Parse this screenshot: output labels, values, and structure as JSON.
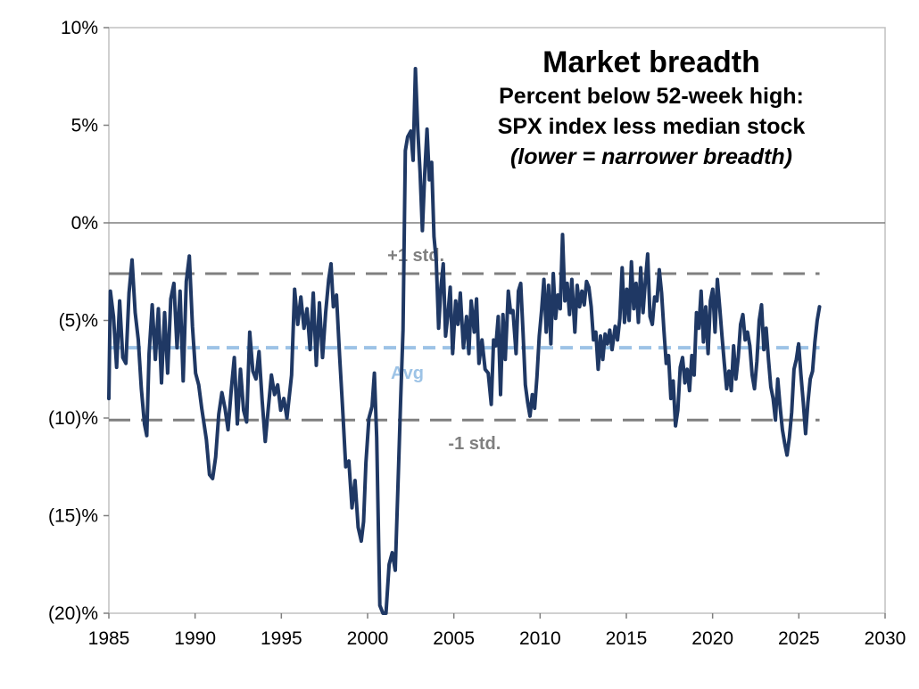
{
  "chart_data": {
    "type": "line",
    "title": "Market breadth",
    "subtitle_lines": [
      "Percent below 52-week high:",
      "SPX index less median stock"
    ],
    "note": "(lower = narrower breadth)",
    "xlim": [
      1985,
      2030
    ],
    "ylim": [
      -20,
      10
    ],
    "x_ticks": [
      {
        "value": 1985,
        "label": "1985"
      },
      {
        "value": 1990,
        "label": "1990"
      },
      {
        "value": 1995,
        "label": "1995"
      },
      {
        "value": 2000,
        "label": "2000"
      },
      {
        "value": 2005,
        "label": "2005"
      },
      {
        "value": 2010,
        "label": "2010"
      },
      {
        "value": 2015,
        "label": "2015"
      },
      {
        "value": 2020,
        "label": "2020"
      },
      {
        "value": 2025,
        "label": "2025"
      },
      {
        "value": 2030,
        "label": "2030"
      }
    ],
    "y_ticks": [
      {
        "value": 10,
        "label": "10%"
      },
      {
        "value": 5,
        "label": "5%"
      },
      {
        "value": 0,
        "label": "0%"
      },
      {
        "value": -5,
        "label": "(5)%"
      },
      {
        "value": -10,
        "label": "(10)%"
      },
      {
        "value": -15,
        "label": "(15)%"
      },
      {
        "value": -20,
        "label": "(20)%"
      }
    ],
    "reference_lines": [
      {
        "label": "+1 std.",
        "value": -2.6,
        "color": "#7f7f7f",
        "label_x": 2002.8
      },
      {
        "label": "Avg",
        "value": -6.4,
        "color": "#9dc3e6",
        "label_x": 2002.3
      },
      {
        "label": "-1 std.",
        "value": -10.1,
        "color": "#7f7f7f",
        "label_x": 2006.2
      }
    ],
    "series": [
      {
        "color": "#1f3864",
        "points": [
          [
            1985.0,
            -9.0
          ],
          [
            1985.1,
            -3.5
          ],
          [
            1985.3,
            -4.8
          ],
          [
            1985.5,
            -7.4
          ],
          [
            1985.7,
            -4.0
          ],
          [
            1985.9,
            -6.9
          ],
          [
            1986.1,
            -7.2
          ],
          [
            1986.3,
            -3.6
          ],
          [
            1986.5,
            -1.9
          ],
          [
            1986.7,
            -4.6
          ],
          [
            1986.9,
            -6.0
          ],
          [
            1987.1,
            -8.5
          ],
          [
            1987.3,
            -10.3
          ],
          [
            1987.45,
            -10.9
          ],
          [
            1987.6,
            -6.7
          ],
          [
            1987.8,
            -4.2
          ],
          [
            1988.0,
            -7.0
          ],
          [
            1988.2,
            -4.4
          ],
          [
            1988.4,
            -8.2
          ],
          [
            1988.6,
            -4.6
          ],
          [
            1988.8,
            -7.7
          ],
          [
            1989.0,
            -3.9
          ],
          [
            1989.2,
            -3.1
          ],
          [
            1989.4,
            -6.4
          ],
          [
            1989.6,
            -3.5
          ],
          [
            1989.8,
            -8.1
          ],
          [
            1990.0,
            -3.0
          ],
          [
            1990.2,
            -1.7
          ],
          [
            1990.4,
            -5.3
          ],
          [
            1990.6,
            -7.7
          ],
          [
            1990.8,
            -8.3
          ],
          [
            1991.0,
            -9.5
          ],
          [
            1991.3,
            -11.1
          ],
          [
            1991.5,
            -12.9
          ],
          [
            1991.7,
            -13.1
          ],
          [
            1991.9,
            -12.0
          ],
          [
            1992.1,
            -9.8
          ],
          [
            1992.3,
            -8.7
          ],
          [
            1992.5,
            -9.5
          ],
          [
            1992.7,
            -10.6
          ],
          [
            1992.9,
            -8.6
          ],
          [
            1993.1,
            -6.9
          ],
          [
            1993.3,
            -10.3
          ],
          [
            1993.5,
            -7.5
          ],
          [
            1993.7,
            -9.6
          ],
          [
            1993.9,
            -10.2
          ],
          [
            1994.1,
            -5.6
          ],
          [
            1994.3,
            -7.6
          ],
          [
            1994.5,
            -8.0
          ],
          [
            1994.7,
            -6.6
          ],
          [
            1994.9,
            -9.1
          ],
          [
            1995.1,
            -11.2
          ],
          [
            1995.3,
            -9.5
          ],
          [
            1995.5,
            -7.8
          ],
          [
            1995.7,
            -8.8
          ],
          [
            1995.9,
            -8.3
          ],
          [
            1996.1,
            -9.6
          ],
          [
            1996.3,
            -9.0
          ],
          [
            1996.5,
            -10.0
          ],
          [
            1996.8,
            -7.8
          ],
          [
            1997.0,
            -3.4
          ],
          [
            1997.2,
            -5.2
          ],
          [
            1997.4,
            -3.8
          ],
          [
            1997.6,
            -5.4
          ],
          [
            1997.8,
            -4.4
          ],
          [
            1998.0,
            -6.5
          ],
          [
            1998.2,
            -3.6
          ],
          [
            1998.4,
            -7.3
          ],
          [
            1998.6,
            -4.1
          ],
          [
            1998.8,
            -6.9
          ],
          [
            1999.0,
            -4.6
          ],
          [
            1999.2,
            -2.9
          ],
          [
            1999.35,
            -2.1
          ],
          [
            1999.5,
            -4.3
          ],
          [
            1999.7,
            -3.7
          ],
          [
            1999.9,
            -6.8
          ],
          [
            2000.1,
            -9.5
          ],
          [
            2000.3,
            -12.5
          ],
          [
            2000.5,
            -12.2
          ],
          [
            2000.7,
            -14.6
          ],
          [
            2000.9,
            -13.2
          ],
          [
            2001.1,
            -15.6
          ],
          [
            2001.3,
            -16.3
          ],
          [
            2001.45,
            -15.3
          ],
          [
            2001.6,
            -12.3
          ],
          [
            2001.8,
            -10.0
          ],
          [
            2002.0,
            -9.4
          ],
          [
            2002.15,
            -7.7
          ],
          [
            2002.3,
            -11.0
          ],
          [
            2002.5,
            -19.6
          ],
          [
            2002.7,
            -20.0
          ],
          [
            2002.9,
            -20.0
          ],
          [
            2003.1,
            -17.5
          ],
          [
            2003.3,
            -16.9
          ],
          [
            2003.5,
            -17.8
          ],
          [
            2003.7,
            -12.8
          ],
          [
            2003.85,
            -9.0
          ],
          [
            2004.0,
            -5.5
          ],
          [
            2004.15,
            3.7
          ],
          [
            2004.3,
            4.4
          ],
          [
            2004.5,
            4.7
          ],
          [
            2004.65,
            3.2
          ],
          [
            2004.8,
            7.9
          ],
          [
            2004.95,
            4.8
          ],
          [
            2005.1,
            2.6
          ],
          [
            2005.25,
            -0.4
          ],
          [
            2005.4,
            2.5
          ],
          [
            2005.55,
            4.8
          ],
          [
            2005.7,
            2.2
          ],
          [
            2005.85,
            3.1
          ],
          [
            2006.0,
            -0.7
          ],
          [
            2006.15,
            -2.0
          ],
          [
            2006.3,
            -5.4
          ],
          [
            2006.45,
            -3.3
          ],
          [
            2006.6,
            -2.1
          ],
          [
            2006.75,
            -5.8
          ],
          [
            2006.9,
            -4.7
          ],
          [
            2007.05,
            -3.3
          ],
          [
            2007.2,
            -6.7
          ],
          [
            2007.4,
            -4.0
          ],
          [
            2007.55,
            -5.2
          ],
          [
            2007.7,
            -3.6
          ],
          [
            2007.9,
            -6.4
          ],
          [
            2008.1,
            -4.8
          ],
          [
            2008.25,
            -6.7
          ],
          [
            2008.4,
            -4.0
          ],
          [
            2008.6,
            -5.6
          ],
          [
            2008.75,
            -3.9
          ],
          [
            2008.9,
            -7.2
          ],
          [
            2009.1,
            -6.0
          ],
          [
            2009.3,
            -7.5
          ],
          [
            2009.5,
            -7.7
          ],
          [
            2009.7,
            -9.3
          ],
          [
            2009.85,
            -6.0
          ],
          [
            2010.0,
            -6.3
          ],
          [
            2010.15,
            -4.8
          ],
          [
            2010.3,
            -8.8
          ],
          [
            2010.45,
            -4.7
          ],
          [
            2010.6,
            -7.0
          ],
          [
            2010.8,
            -3.5
          ],
          [
            2010.95,
            -4.6
          ],
          [
            2011.1,
            -4.5
          ],
          [
            2011.3,
            -6.7
          ],
          [
            2011.45,
            -3.5
          ],
          [
            2011.6,
            -3.1
          ],
          [
            2011.75,
            -5.6
          ],
          [
            2011.9,
            -8.3
          ],
          [
            2012.05,
            -9.2
          ],
          [
            2012.2,
            -9.9
          ],
          [
            2012.35,
            -8.8
          ],
          [
            2012.5,
            -9.5
          ],
          [
            2012.65,
            -7.9
          ],
          [
            2012.8,
            -5.8
          ],
          [
            2012.95,
            -4.5
          ],
          [
            2013.1,
            -2.9
          ],
          [
            2013.25,
            -5.6
          ],
          [
            2013.4,
            -3.2
          ],
          [
            2013.55,
            -6.2
          ],
          [
            2013.7,
            -2.6
          ],
          [
            2013.85,
            -4.9
          ],
          [
            2014.0,
            -3.7
          ],
          [
            2014.15,
            -4.4
          ],
          [
            2014.3,
            -0.6
          ],
          [
            2014.45,
            -4.0
          ],
          [
            2014.6,
            -3.1
          ],
          [
            2014.75,
            -4.7
          ],
          [
            2014.9,
            -2.9
          ],
          [
            2015.1,
            -5.6
          ],
          [
            2015.25,
            -3.2
          ],
          [
            2015.4,
            -4.3
          ],
          [
            2015.55,
            -3.5
          ],
          [
            2015.7,
            -4.2
          ],
          [
            2015.85,
            -3.0
          ],
          [
            2016.0,
            -3.3
          ],
          [
            2016.15,
            -4.3
          ],
          [
            2016.3,
            -6.0
          ],
          [
            2016.45,
            -5.6
          ],
          [
            2016.6,
            -7.5
          ],
          [
            2016.75,
            -5.8
          ],
          [
            2016.9,
            -7.0
          ],
          [
            2017.05,
            -5.7
          ],
          [
            2017.2,
            -6.2
          ],
          [
            2017.35,
            -5.5
          ],
          [
            2017.5,
            -6.5
          ],
          [
            2017.7,
            -5.3
          ],
          [
            2017.85,
            -6.0
          ],
          [
            2018.0,
            -4.9
          ],
          [
            2018.15,
            -2.3
          ],
          [
            2018.3,
            -5.1
          ],
          [
            2018.45,
            -3.4
          ],
          [
            2018.6,
            -5.0
          ],
          [
            2018.75,
            -2.0
          ],
          [
            2018.9,
            -4.4
          ],
          [
            2019.05,
            -3.1
          ],
          [
            2019.2,
            -5.1
          ],
          [
            2019.35,
            -2.3
          ],
          [
            2019.5,
            -4.6
          ],
          [
            2019.65,
            -3.0
          ],
          [
            2019.8,
            -1.6
          ],
          [
            2019.95,
            -4.8
          ],
          [
            2020.1,
            -5.2
          ],
          [
            2020.25,
            -3.8
          ],
          [
            2020.4,
            -4.0
          ],
          [
            2020.55,
            -2.4
          ],
          [
            2020.7,
            -3.6
          ],
          [
            2020.85,
            -5.5
          ],
          [
            2021.0,
            -7.2
          ],
          [
            2021.15,
            -6.8
          ],
          [
            2021.3,
            -9.0
          ],
          [
            2021.45,
            -8.1
          ],
          [
            2021.6,
            -10.4
          ],
          [
            2021.75,
            -9.6
          ],
          [
            2021.9,
            -7.4
          ],
          [
            2022.05,
            -6.9
          ],
          [
            2022.2,
            -8.2
          ],
          [
            2022.35,
            -7.5
          ],
          [
            2022.5,
            -8.6
          ],
          [
            2022.65,
            -6.8
          ],
          [
            2022.8,
            -7.8
          ],
          [
            2022.95,
            -4.6
          ],
          [
            2023.1,
            -5.4
          ],
          [
            2023.25,
            -3.5
          ],
          [
            2023.4,
            -6.1
          ],
          [
            2023.55,
            -4.3
          ],
          [
            2023.7,
            -6.7
          ],
          [
            2023.85,
            -4.0
          ],
          [
            2024.0,
            -3.4
          ],
          [
            2024.15,
            -5.6
          ],
          [
            2024.3,
            -2.9
          ],
          [
            2024.45,
            -4.3
          ],
          [
            2024.6,
            -5.8
          ],
          [
            2024.75,
            -7.2
          ],
          [
            2024.9,
            -8.5
          ],
          [
            2025.05,
            -7.6
          ],
          [
            2025.2,
            -8.6
          ],
          [
            2025.35,
            -6.3
          ],
          [
            2025.5,
            -8.0
          ],
          [
            2025.65,
            -6.9
          ],
          [
            2025.8,
            -5.2
          ],
          [
            2025.95,
            -4.7
          ],
          [
            2026.1,
            -6.0
          ],
          [
            2026.25,
            -5.6
          ],
          [
            2026.4,
            -6.3
          ],
          [
            2026.55,
            -7.8
          ],
          [
            2026.7,
            -8.5
          ],
          [
            2026.85,
            -7.1
          ],
          [
            2027.0,
            -5.0
          ],
          [
            2027.15,
            -4.2
          ],
          [
            2027.3,
            -6.5
          ],
          [
            2027.45,
            -5.4
          ],
          [
            2027.6,
            -7.0
          ],
          [
            2027.75,
            -8.4
          ],
          [
            2027.9,
            -9.0
          ],
          [
            2028.05,
            -10.1
          ],
          [
            2028.2,
            -8.0
          ],
          [
            2028.35,
            -9.4
          ],
          [
            2028.5,
            -10.6
          ],
          [
            2028.65,
            -11.3
          ],
          [
            2028.8,
            -11.9
          ],
          [
            2028.95,
            -11.0
          ],
          [
            2029.1,
            -9.7
          ],
          [
            2029.25,
            -7.5
          ],
          [
            2029.4,
            -7.0
          ],
          [
            2029.55,
            -6.2
          ],
          [
            2029.7,
            -7.8
          ],
          [
            2029.85,
            -9.2
          ],
          [
            2030.0,
            -10.8
          ],
          [
            2030.15,
            -9.2
          ],
          [
            2030.3,
            -8.0
          ],
          [
            2030.45,
            -7.6
          ],
          [
            2030.6,
            -6.1
          ],
          [
            2030.75,
            -5.0
          ],
          [
            2030.9,
            -4.3
          ]
        ]
      }
    ]
  }
}
